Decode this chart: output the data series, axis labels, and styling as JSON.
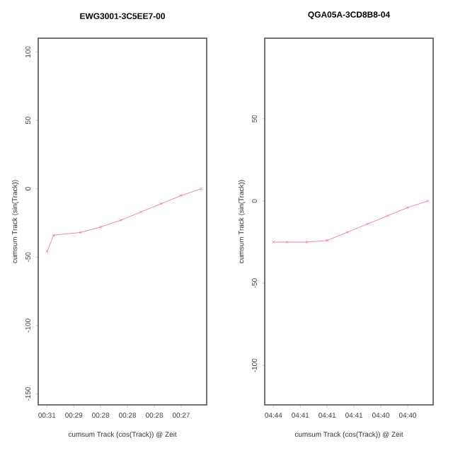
{
  "chart_data": [
    {
      "type": "line",
      "title": "EWG3001-3C5EE7-00",
      "xlabel": "cumsum Track (cos(Track)) @ Zeit",
      "ylabel": "cumsum Track (sin(Track))",
      "categories": [
        "00:31",
        null,
        null,
        null,
        "00:29",
        null,
        null,
        null,
        "00:28",
        null,
        null,
        null,
        "00:28",
        null,
        null,
        null,
        "00:28",
        null,
        null,
        null,
        "00:27",
        null,
        null,
        null
      ],
      "ylim": [
        -158,
        110
      ],
      "yticks": [
        -150,
        -100,
        -50,
        0,
        50,
        100
      ],
      "marker": "cross",
      "series": [
        {
          "color": "#f08a94",
          "values": [
            -46,
            -34,
            null,
            null,
            null,
            -32,
            null,
            null,
            -28,
            null,
            null,
            -23,
            null,
            null,
            -17,
            null,
            null,
            -11,
            null,
            null,
            -5,
            null,
            null,
            0
          ]
        }
      ]
    },
    {
      "type": "line",
      "title": "QGA05A-3CD8B8-04",
      "xlabel": "cumsum Track (cos(Track)) @ Zeit",
      "ylabel": "cumsum Track (sin(Track))",
      "categories": [
        "04:44",
        null,
        null,
        null,
        "04:41",
        null,
        null,
        null,
        "04:41",
        null,
        null,
        null,
        "04:41",
        null,
        null,
        null,
        "04:40",
        null,
        null,
        null,
        "04:40",
        null,
        null,
        null
      ],
      "ylim": [
        -124,
        99
      ],
      "yticks": [
        -100,
        -50,
        0,
        50
      ],
      "marker": "cross",
      "series": [
        {
          "color": "#f08a94",
          "values": [
            -25,
            null,
            -25,
            null,
            null,
            -25,
            null,
            null,
            -24,
            null,
            null,
            -19,
            null,
            null,
            -14,
            null,
            null,
            -9,
            null,
            null,
            -4,
            null,
            null,
            0
          ]
        }
      ]
    }
  ]
}
